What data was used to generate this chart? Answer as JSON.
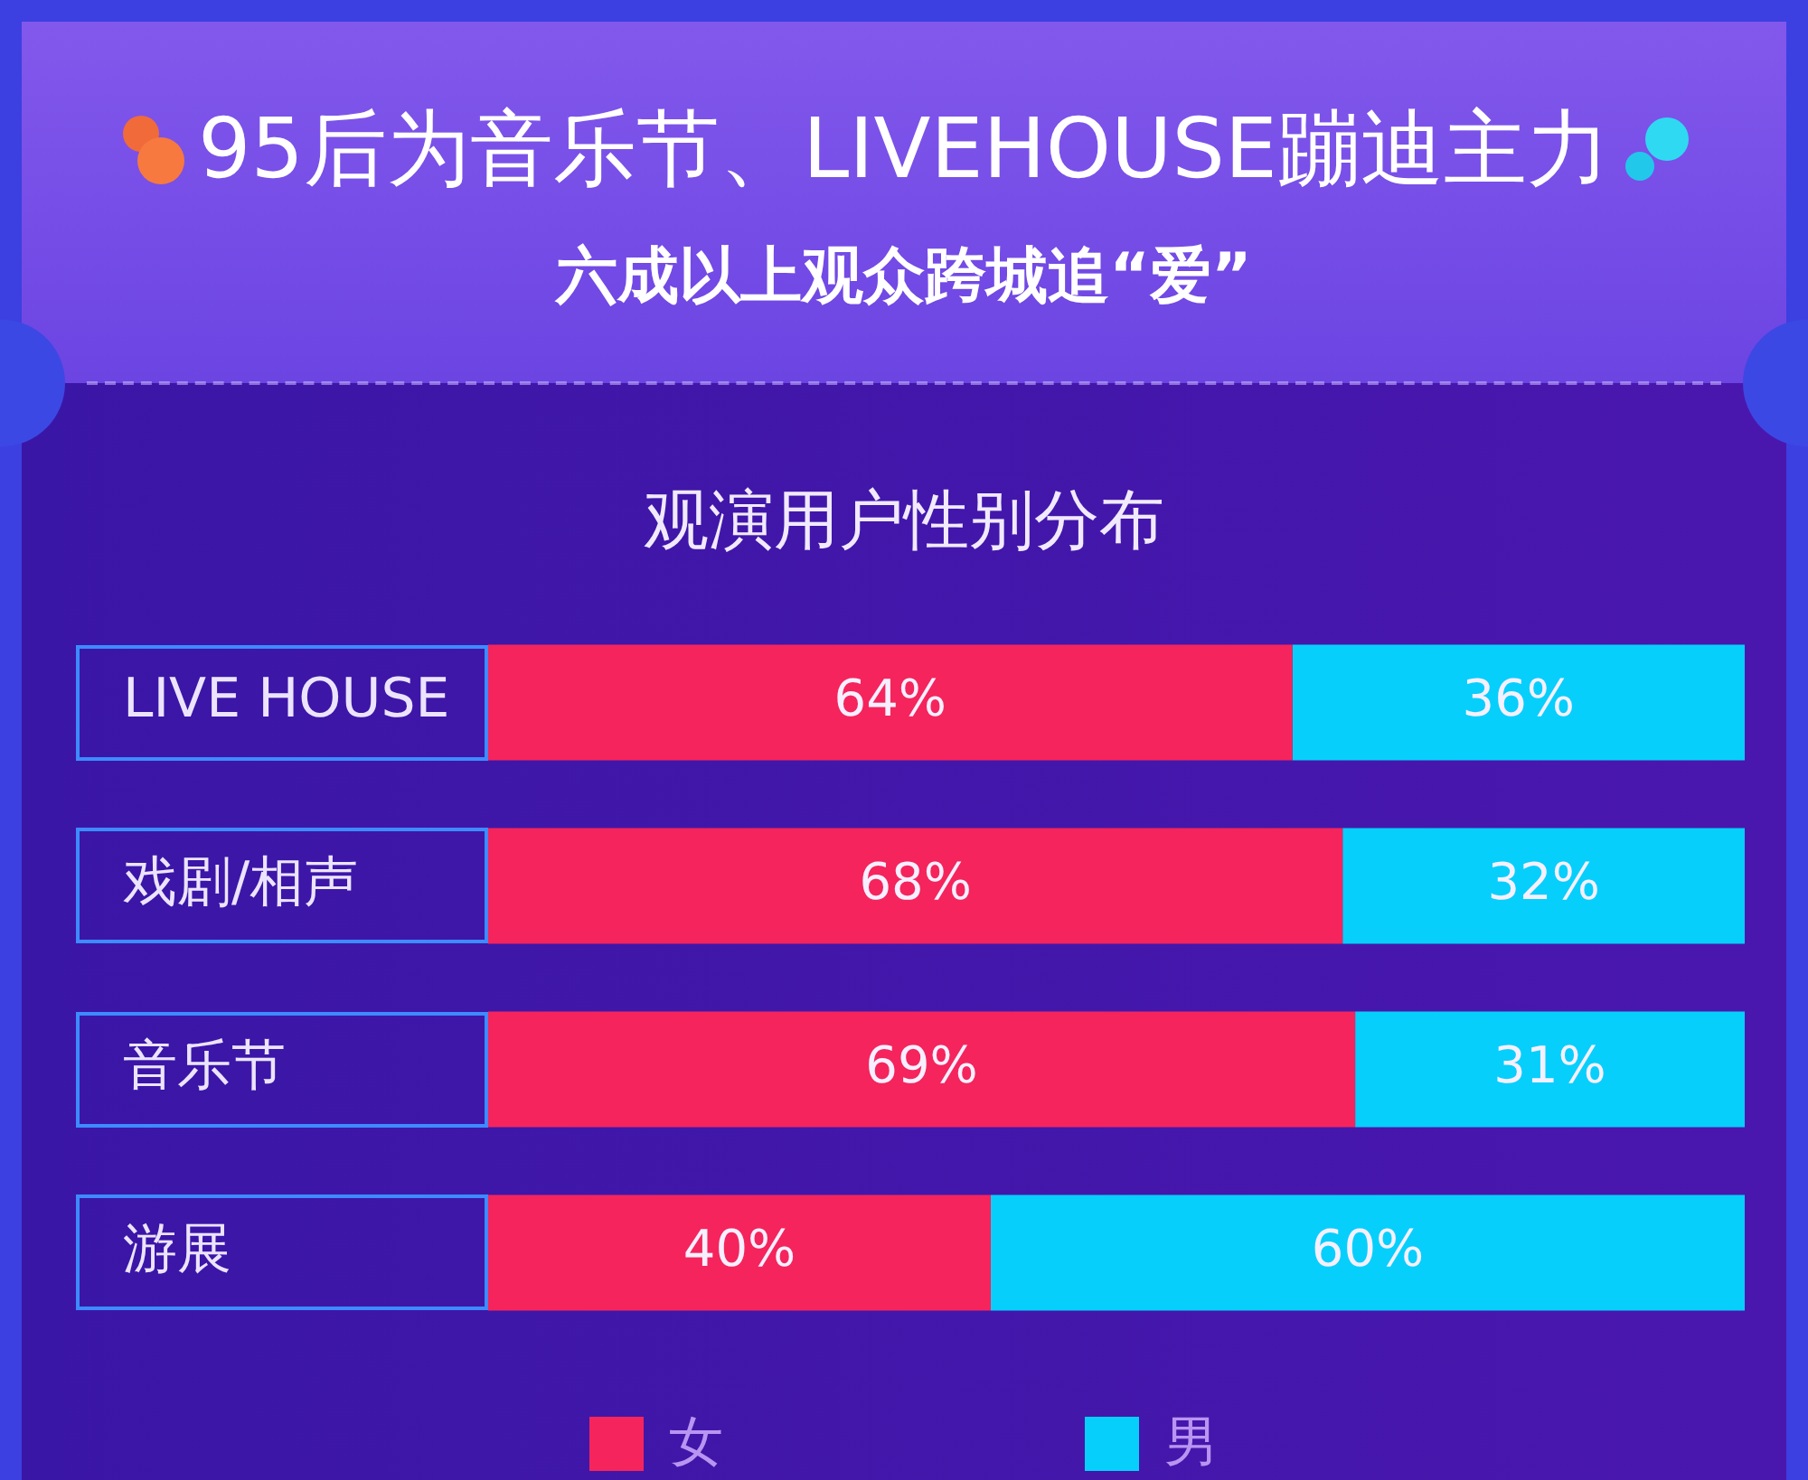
{
  "chart_data": {
    "type": "bar",
    "orientation": "horizontal",
    "stacked": true,
    "title": "95后为音乐节、LIVEHOUSE蹦迪主力",
    "subtitle": "六成以上观众跨城追“爱”",
    "annotations": [
      "观演用户性别分布"
    ],
    "categories": [
      "LIVE HOUSE",
      "戏剧/相声",
      "音乐节",
      "游展"
    ],
    "series": [
      {
        "name": "女",
        "color": "#f5245c",
        "values": [
          64,
          68,
          69,
          40
        ],
        "value_labels": [
          "64%",
          "68%",
          "69%",
          "40%"
        ]
      },
      {
        "name": "男",
        "color": "#06cffb",
        "values": [
          36,
          32,
          31,
          60
        ],
        "value_labels": [
          "36%",
          "32%",
          "31%",
          "60%"
        ]
      }
    ],
    "xlim": [
      0,
      100
    ],
    "tick_labels": "y",
    "legend": "bottom"
  }
}
